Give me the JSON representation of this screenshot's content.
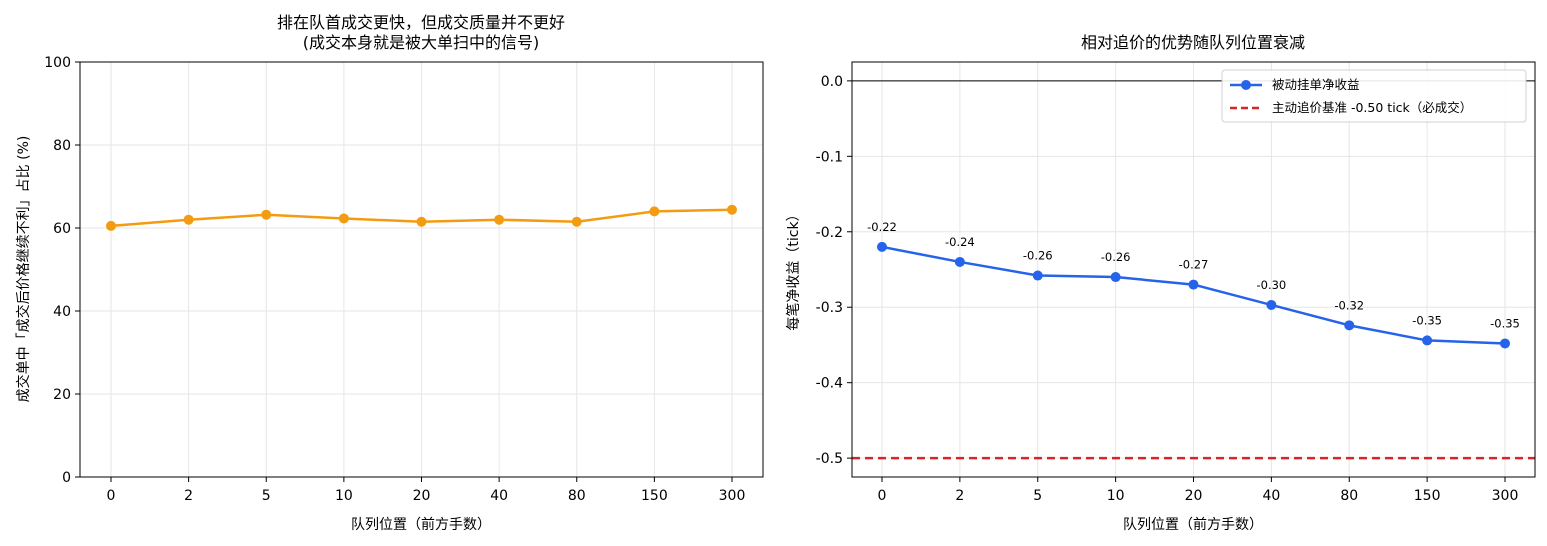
{
  "chart_data": [
    {
      "type": "line",
      "title_lines": [
        "排在队首成交更快，但成交质量并不更好",
        "(成交本身就是被大单扫中的信号)"
      ],
      "xlabel": "队列位置（前方手数）",
      "ylabel": "成交单中「成交后价格继续不利」占比 (%)",
      "categories": [
        "0",
        "2",
        "5",
        "10",
        "20",
        "40",
        "80",
        "150",
        "300"
      ],
      "series": [
        {
          "values": [
            60.5,
            62.0,
            63.2,
            62.3,
            61.5,
            62.0,
            61.5,
            64.0,
            64.4
          ],
          "color": "#f39c12"
        }
      ],
      "ylim": [
        0,
        100
      ],
      "yticks": [
        0,
        20,
        40,
        60,
        80,
        100
      ],
      "ytick_labels": [
        "0",
        "20",
        "40",
        "60",
        "80",
        "100"
      ],
      "grid": true
    },
    {
      "type": "line",
      "title_lines": [
        "相对追价的优势随队列位置衰减"
      ],
      "xlabel": "队列位置（前方手数）",
      "ylabel": "每笔净收益（tick）",
      "categories": [
        "0",
        "2",
        "5",
        "10",
        "20",
        "40",
        "80",
        "150",
        "300"
      ],
      "series": [
        {
          "name": "被动挂单净收益",
          "values": [
            -0.22,
            -0.24,
            -0.258,
            -0.26,
            -0.27,
            -0.297,
            -0.324,
            -0.344,
            -0.348
          ],
          "color": "#2563eb"
        }
      ],
      "data_labels": [
        "-0.22",
        "-0.24",
        "-0.26",
        "-0.26",
        "-0.27",
        "-0.30",
        "-0.32",
        "-0.35",
        "-0.35"
      ],
      "reference_lines": [
        {
          "name": "主动追价基准 -0.50 tick（必成交）",
          "value": -0.5,
          "color": "#d62728",
          "style": "dashed"
        },
        {
          "value": 0.0,
          "color": "#000000",
          "style": "solid"
        }
      ],
      "ylim": [
        -0.525,
        0.025
      ],
      "yticks": [
        -0.5,
        -0.4,
        -0.3,
        -0.2,
        -0.1,
        0.0
      ],
      "ytick_labels": [
        "-0.5",
        "-0.4",
        "-0.3",
        "-0.2",
        "-0.1",
        "0.0"
      ],
      "legend": "top-right",
      "grid": true
    }
  ]
}
